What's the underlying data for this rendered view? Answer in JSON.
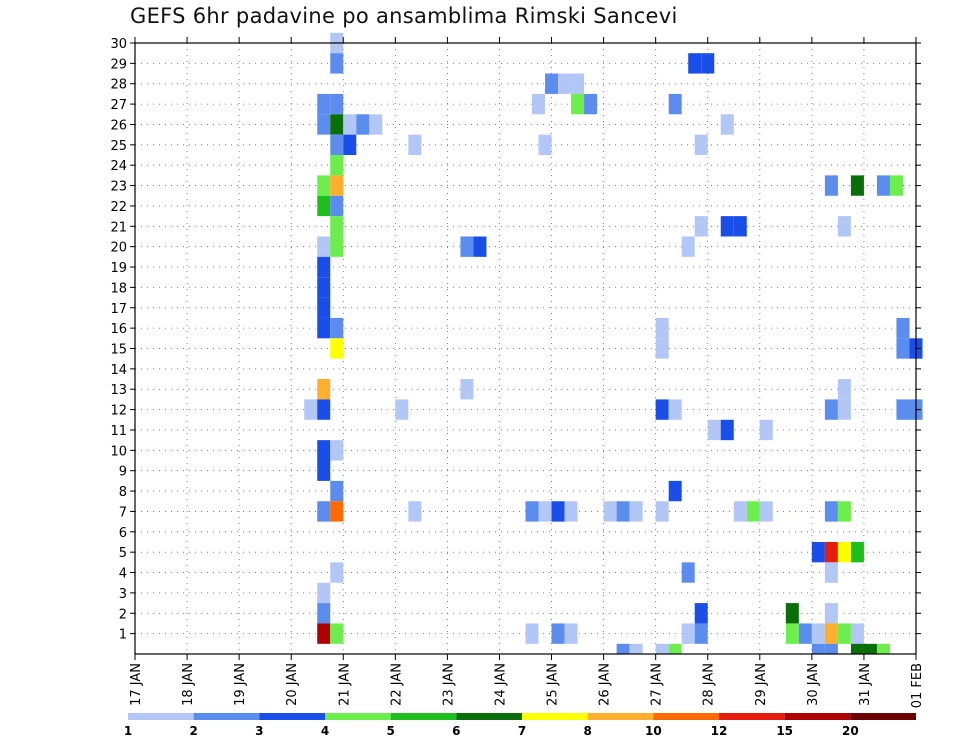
{
  "chart_data": {
    "type": "heatmap",
    "title": "GEFS 6hr padavine po ansamblima Rimski Sancevi",
    "xlabel": "",
    "ylabel": "",
    "y_ticks": [
      1,
      2,
      3,
      4,
      5,
      6,
      7,
      8,
      9,
      10,
      11,
      12,
      13,
      14,
      15,
      16,
      17,
      18,
      19,
      20,
      21,
      22,
      23,
      24,
      25,
      26,
      27,
      28,
      29,
      30
    ],
    "x_ticks": [
      "17 JAN",
      "18 JAN",
      "19 JAN",
      "20 JAN",
      "21 JAN",
      "22 JAN",
      "23 JAN",
      "24 JAN",
      "25 JAN",
      "26 JAN",
      "27 JAN",
      "28 JAN",
      "29 JAN",
      "30 JAN",
      "31 JAN",
      "01 FEB"
    ],
    "xlim_days": [
      0,
      15
    ],
    "ylim": [
      0,
      30
    ],
    "time_step_hours": 6,
    "grid": "dotted",
    "legend": {
      "placement": "bottom",
      "colors": [
        "#b3c7f7",
        "#5b8def",
        "#1a4ee8",
        "#6cef4d",
        "#1dbf1d",
        "#0a6e0a",
        "#ffff00",
        "#ffae2d",
        "#ff6a00",
        "#e61c0f",
        "#ad0000",
        "#6b0000"
      ],
      "labels": [
        "1",
        "2",
        "3",
        "4",
        "5",
        "6",
        "7",
        "8",
        "10",
        "12",
        "15",
        "20"
      ]
    },
    "cells": [
      {
        "member": 30,
        "x": [
          [
            3.875,
            1
          ]
        ]
      },
      {
        "member": 29,
        "x": [
          [
            3.875,
            2
          ],
          [
            10.75,
            3
          ],
          [
            11.0,
            3
          ]
        ]
      },
      {
        "member": 28,
        "x": [
          [
            8.0,
            2
          ],
          [
            8.25,
            1
          ],
          [
            8.5,
            1
          ]
        ]
      },
      {
        "member": 27,
        "x": [
          [
            3.625,
            2
          ],
          [
            3.875,
            2
          ],
          [
            7.75,
            1
          ],
          [
            8.5,
            4
          ],
          [
            8.75,
            2
          ],
          [
            10.375,
            2
          ]
        ]
      },
      {
        "member": 26,
        "x": [
          [
            3.625,
            2
          ],
          [
            3.875,
            6
          ],
          [
            4.125,
            1
          ],
          [
            4.375,
            2
          ],
          [
            4.625,
            1
          ],
          [
            11.375,
            1
          ]
        ]
      },
      {
        "member": 25,
        "x": [
          [
            3.875,
            2
          ],
          [
            4.125,
            3
          ],
          [
            5.375,
            1
          ],
          [
            7.875,
            1
          ],
          [
            10.875,
            1
          ]
        ]
      },
      {
        "member": 24,
        "x": [
          [
            3.875,
            4
          ]
        ]
      },
      {
        "member": 23,
        "x": [
          [
            3.625,
            4
          ],
          [
            3.875,
            8
          ],
          [
            13.375,
            2
          ],
          [
            13.875,
            6
          ],
          [
            14.375,
            2
          ],
          [
            14.625,
            4
          ]
        ]
      },
      {
        "member": 22,
        "x": [
          [
            3.625,
            5
          ],
          [
            3.875,
            2
          ]
        ]
      },
      {
        "member": 21,
        "x": [
          [
            3.875,
            4
          ],
          [
            10.875,
            1
          ],
          [
            11.375,
            3
          ],
          [
            11.625,
            3
          ],
          [
            13.625,
            1
          ]
        ]
      },
      {
        "member": 20,
        "x": [
          [
            3.625,
            1
          ],
          [
            3.875,
            4
          ],
          [
            6.375,
            2
          ],
          [
            6.625,
            3
          ],
          [
            10.625,
            1
          ]
        ]
      },
      {
        "member": 19,
        "x": [
          [
            3.625,
            3
          ]
        ]
      },
      {
        "member": 18,
        "x": [
          [
            3.625,
            3
          ]
        ]
      },
      {
        "member": 17,
        "x": [
          [
            3.625,
            3
          ]
        ]
      },
      {
        "member": 16,
        "x": [
          [
            3.625,
            3
          ],
          [
            3.875,
            2
          ],
          [
            10.125,
            1
          ],
          [
            14.75,
            2
          ]
        ]
      },
      {
        "member": 15,
        "x": [
          [
            3.875,
            7
          ],
          [
            10.125,
            1
          ],
          [
            14.75,
            2
          ],
          [
            15.0,
            3
          ]
        ]
      },
      {
        "member": 14,
        "x": []
      },
      {
        "member": 13,
        "x": [
          [
            3.625,
            8
          ],
          [
            6.375,
            1
          ],
          [
            13.625,
            1
          ]
        ]
      },
      {
        "member": 12,
        "x": [
          [
            3.375,
            1
          ],
          [
            3.625,
            3
          ],
          [
            5.125,
            1
          ],
          [
            10.125,
            3
          ],
          [
            10.375,
            1
          ],
          [
            13.375,
            2
          ],
          [
            13.625,
            1
          ],
          [
            14.75,
            2
          ],
          [
            15.0,
            2
          ]
        ]
      },
      {
        "member": 11,
        "x": [
          [
            11.125,
            1
          ],
          [
            11.375,
            3
          ],
          [
            12.125,
            1
          ]
        ]
      },
      {
        "member": 10,
        "x": [
          [
            3.625,
            3
          ],
          [
            3.875,
            1
          ]
        ]
      },
      {
        "member": 9,
        "x": [
          [
            3.625,
            3
          ]
        ]
      },
      {
        "member": 8,
        "x": [
          [
            3.875,
            2
          ],
          [
            10.375,
            3
          ]
        ]
      },
      {
        "member": 7,
        "x": [
          [
            3.625,
            2
          ],
          [
            3.875,
            9
          ],
          [
            5.375,
            1
          ],
          [
            7.625,
            2
          ],
          [
            7.875,
            1
          ],
          [
            8.125,
            3
          ],
          [
            8.375,
            1
          ],
          [
            9.125,
            1
          ],
          [
            9.375,
            2
          ],
          [
            9.625,
            1
          ],
          [
            10.125,
            1
          ],
          [
            11.625,
            1
          ],
          [
            11.875,
            4
          ],
          [
            12.125,
            1
          ],
          [
            13.375,
            2
          ],
          [
            13.625,
            4
          ]
        ]
      },
      {
        "member": 6,
        "x": []
      },
      {
        "member": 5,
        "x": [
          [
            13.125,
            3
          ],
          [
            13.375,
            10
          ],
          [
            13.625,
            7
          ],
          [
            13.875,
            5
          ]
        ]
      },
      {
        "member": 4,
        "x": [
          [
            3.875,
            1
          ],
          [
            10.625,
            2
          ],
          [
            13.375,
            1
          ]
        ]
      },
      {
        "member": 3,
        "x": [
          [
            3.625,
            1
          ]
        ]
      },
      {
        "member": 2,
        "x": [
          [
            3.625,
            2
          ],
          [
            10.875,
            3
          ],
          [
            12.625,
            6
          ],
          [
            13.375,
            1
          ]
        ]
      },
      {
        "member": 1,
        "x": [
          [
            3.625,
            11
          ],
          [
            3.875,
            4
          ],
          [
            7.625,
            1
          ],
          [
            8.125,
            2
          ],
          [
            8.375,
            1
          ],
          [
            10.625,
            1
          ],
          [
            10.875,
            2
          ],
          [
            12.625,
            4
          ],
          [
            12.875,
            2
          ],
          [
            13.125,
            1
          ],
          [
            13.375,
            8
          ],
          [
            13.625,
            4
          ],
          [
            13.875,
            1
          ]
        ]
      },
      {
        "member": 0,
        "x": [
          [
            9.375,
            2
          ],
          [
            9.625,
            1
          ],
          [
            10.125,
            1
          ],
          [
            10.375,
            4
          ],
          [
            13.125,
            2
          ],
          [
            13.375,
            2
          ],
          [
            13.875,
            6
          ],
          [
            14.125,
            6
          ],
          [
            14.375,
            4
          ]
        ]
      }
    ]
  }
}
